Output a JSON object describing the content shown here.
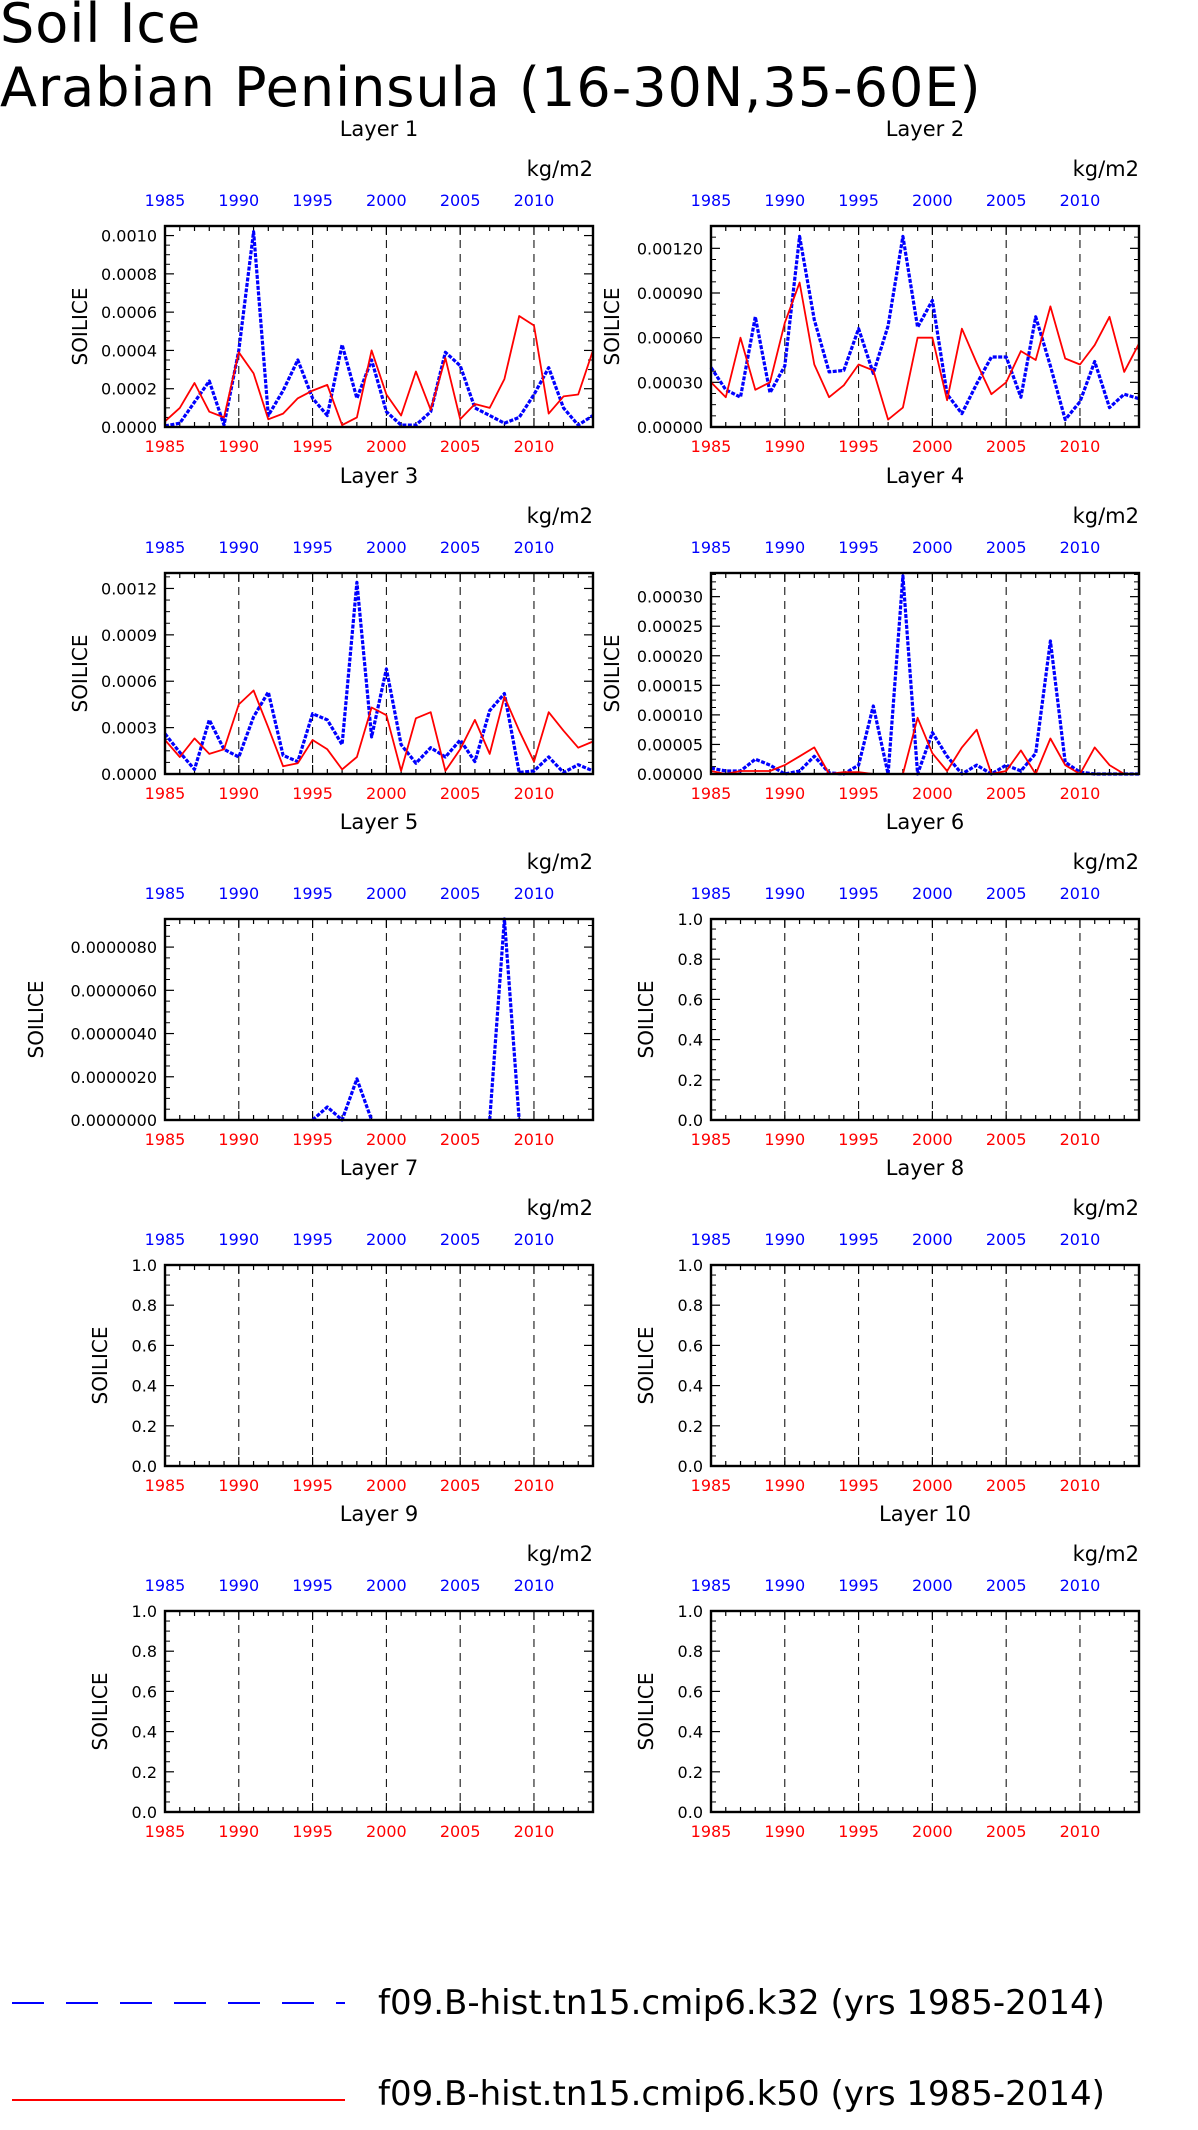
{
  "figure": {
    "title_line1": "Soil Ice",
    "title_line2": "Arabian Peninsula (16-30N,35-60E)"
  },
  "colors": {
    "series_k32": "#0000ff",
    "series_k50": "#ff0000",
    "bottom_axis": "#ff0000",
    "top_axis": "#0000ff"
  },
  "legend": [
    {
      "label": "f09.B-hist.tn15.cmip6.k32 (yrs 1985-2014)",
      "color": "#0000ff",
      "style": "dashed"
    },
    {
      "label": "f09.B-hist.tn15.cmip6.k50 (yrs 1985-2014)",
      "color": "#ff0000",
      "style": "solid"
    }
  ],
  "chart_data": [
    {
      "type": "line",
      "title": "Layer 1",
      "ylabel": "SOILICE",
      "units": "kg/m2",
      "xlim": [
        1985,
        2014
      ],
      "ylim": [
        0,
        0.00105
      ],
      "xticks": [
        1985,
        1990,
        1995,
        2000,
        2005,
        2010
      ],
      "xtick_labels": [
        "1985",
        "1990",
        "1995",
        "2000",
        "2005",
        "2010"
      ],
      "yticks": [
        0,
        0.0002,
        0.0004,
        0.0006,
        0.0008,
        0.001
      ],
      "ytick_labels": [
        "0.0000",
        "0.0002",
        "0.0004",
        "0.0006",
        "0.0008",
        "0.0010"
      ],
      "grid_x": "dashed",
      "x": [
        1985,
        1986,
        1987,
        1988,
        1989,
        1990,
        1991,
        1992,
        1993,
        1994,
        1995,
        1996,
        1997,
        1998,
        1999,
        2000,
        2001,
        2002,
        2003,
        2004,
        2005,
        2006,
        2007,
        2008,
        2009,
        2010,
        2011,
        2012,
        2013,
        2014
      ],
      "series": [
        {
          "name": "f09.B-hist.tn15.cmip6.k32",
          "values": [
            5e-06,
            2e-05,
            0.00013,
            0.00024,
            1e-05,
            0.0004,
            0.00102,
            6e-05,
            0.00019,
            0.00035,
            0.00015,
            6e-05,
            0.00043,
            0.00015,
            0.00035,
            8e-05,
            1e-05,
            1e-05,
            8e-05,
            0.00039,
            0.00032,
            0.0001,
            6e-05,
            2e-05,
            5e-05,
            0.00017,
            0.00031,
            0.0001,
            1e-05,
            6e-05
          ]
        },
        {
          "name": "f09.B-hist.tn15.cmip6.k50",
          "values": [
            3e-05,
            0.0001,
            0.00023,
            8e-05,
            5e-05,
            0.00039,
            0.00028,
            4e-05,
            7e-05,
            0.00015,
            0.00019,
            0.00022,
            1e-05,
            5e-05,
            0.0004,
            0.00017,
            6e-05,
            0.00029,
            9e-05,
            0.00036,
            4e-05,
            0.00012,
            0.0001,
            0.00025,
            0.00058,
            0.00053,
            7e-05,
            0.00016,
            0.00017,
            0.0004
          ]
        }
      ]
    },
    {
      "type": "line",
      "title": "Layer 2",
      "ylabel": "SOILICE",
      "units": "kg/m2",
      "xlim": [
        1985,
        2014
      ],
      "ylim": [
        0,
        0.00135
      ],
      "xticks": [
        1985,
        1990,
        1995,
        2000,
        2005,
        2010
      ],
      "xtick_labels": [
        "1985",
        "1990",
        "1995",
        "2000",
        "2005",
        "2010"
      ],
      "yticks": [
        0,
        0.0003,
        0.0006,
        0.0009,
        0.0012
      ],
      "ytick_labels": [
        "0.00000",
        "0.00030",
        "0.00060",
        "0.00090",
        "0.00120"
      ],
      "grid_x": "dashed",
      "x": [
        1985,
        1986,
        1987,
        1988,
        1989,
        1990,
        1991,
        1992,
        1993,
        1994,
        1995,
        1996,
        1997,
        1998,
        1999,
        2000,
        2001,
        2002,
        2003,
        2004,
        2005,
        2006,
        2007,
        2008,
        2009,
        2010,
        2011,
        2012,
        2013,
        2014
      ],
      "series": [
        {
          "name": "f09.B-hist.tn15.cmip6.k32",
          "values": [
            0.0004,
            0.00025,
            0.0002,
            0.00074,
            0.00023,
            0.00041,
            0.00128,
            0.00072,
            0.00037,
            0.00038,
            0.00066,
            0.00036,
            0.00068,
            0.00128,
            0.00067,
            0.00085,
            0.00022,
            9e-05,
            0.00029,
            0.00047,
            0.00047,
            0.0002,
            0.00074,
            0.00041,
            5e-05,
            0.00017,
            0.00044,
            0.00013,
            0.00022,
            0.00019
          ]
        },
        {
          "name": "f09.B-hist.tn15.cmip6.k50",
          "values": [
            0.0003,
            0.0002,
            0.0006,
            0.00025,
            0.0003,
            0.0007,
            0.00097,
            0.00042,
            0.0002,
            0.00028,
            0.00042,
            0.00038,
            5e-05,
            0.00013,
            0.0006,
            0.0006,
            0.00018,
            0.00066,
            0.00043,
            0.00022,
            0.0003,
            0.00051,
            0.00045,
            0.00081,
            0.00046,
            0.00042,
            0.00055,
            0.00074,
            0.00037,
            0.00056
          ]
        }
      ]
    },
    {
      "type": "line",
      "title": "Layer 3",
      "ylabel": "SOILICE",
      "units": "kg/m2",
      "xlim": [
        1985,
        2014
      ],
      "ylim": [
        0,
        0.0013
      ],
      "xticks": [
        1985,
        1990,
        1995,
        2000,
        2005,
        2010
      ],
      "xtick_labels": [
        "1985",
        "1990",
        "1995",
        "2000",
        "2005",
        "2010"
      ],
      "yticks": [
        0,
        0.0003,
        0.0006,
        0.0009,
        0.0012
      ],
      "ytick_labels": [
        "0.0000",
        "0.0003",
        "0.0006",
        "0.0009",
        "0.0012"
      ],
      "grid_x": "dashed",
      "x": [
        1985,
        1986,
        1987,
        1988,
        1989,
        1990,
        1991,
        1992,
        1993,
        1994,
        1995,
        1996,
        1997,
        1998,
        1999,
        2000,
        2001,
        2002,
        2003,
        2004,
        2005,
        2006,
        2007,
        2008,
        2009,
        2010,
        2011,
        2012,
        2013,
        2014
      ],
      "series": [
        {
          "name": "f09.B-hist.tn15.cmip6.k32",
          "values": [
            0.00026,
            0.00014,
            3e-05,
            0.00035,
            0.00016,
            0.00011,
            0.00037,
            0.00053,
            0.00012,
            8e-05,
            0.00039,
            0.00035,
            0.00019,
            0.00124,
            0.00024,
            0.00068,
            0.00019,
            7e-05,
            0.00017,
            0.00011,
            0.00022,
            8e-05,
            0.00041,
            0.00052,
            1e-05,
            2e-05,
            0.00011,
            1e-05,
            6e-05,
            2e-05
          ]
        },
        {
          "name": "f09.B-hist.tn15.cmip6.k50",
          "values": [
            0.00022,
            0.00011,
            0.00023,
            0.00013,
            0.00016,
            0.00045,
            0.00054,
            0.0003,
            5e-05,
            7e-05,
            0.00022,
            0.00016,
            3e-05,
            0.00011,
            0.00043,
            0.00038,
            2e-05,
            0.00036,
            0.0004,
            2e-05,
            0.00016,
            0.00035,
            0.00013,
            0.0005,
            0.00028,
            8e-05,
            0.0004,
            0.00028,
            0.00017,
            0.00021
          ]
        }
      ]
    },
    {
      "type": "line",
      "title": "Layer 4",
      "ylabel": "SOILICE",
      "units": "kg/m2",
      "xlim": [
        1985,
        2014
      ],
      "ylim": [
        0,
        0.00034
      ],
      "xticks": [
        1985,
        1990,
        1995,
        2000,
        2005,
        2010
      ],
      "xtick_labels": [
        "1985",
        "1990",
        "1995",
        "2000",
        "2005",
        "2010"
      ],
      "yticks": [
        0,
        5e-05,
        0.0001,
        0.00015,
        0.0002,
        0.00025,
        0.0003
      ],
      "ytick_labels": [
        "0.00000",
        "0.00005",
        "0.00010",
        "0.00015",
        "0.00020",
        "0.00025",
        "0.00030"
      ],
      "grid_x": "dashed",
      "x": [
        1985,
        1986,
        1987,
        1988,
        1989,
        1990,
        1991,
        1992,
        1993,
        1994,
        1995,
        1996,
        1997,
        1998,
        1999,
        2000,
        2001,
        2002,
        2003,
        2004,
        2005,
        2006,
        2007,
        2008,
        2009,
        2010,
        2011,
        2012,
        2013,
        2014
      ],
      "series": [
        {
          "name": "f09.B-hist.tn15.cmip6.k32",
          "values": [
            1e-05,
            5e-06,
            5e-06,
            2.5e-05,
            1.5e-05,
            0.0,
            5e-06,
            3e-05,
            2e-06,
            0.0,
            1.5e-05,
            0.000115,
            0.0,
            0.000335,
            0.0,
            7e-05,
            3e-05,
            0.0,
            1.5e-05,
            0.0,
            1.5e-05,
            5e-06,
            3.5e-05,
            0.000225,
            2e-05,
            3e-06,
            0.0,
            0.0,
            0.0,
            0.0
          ]
        },
        {
          "name": "f09.B-hist.tn15.cmip6.k50",
          "values": [
            5e-06,
            0.0,
            5e-06,
            5e-06,
            5e-06,
            1.5e-05,
            3e-05,
            4.5e-05,
            0.0,
            3e-06,
            3e-06,
            0.0,
            0.0,
            0.0,
            9.5e-05,
            3.5e-05,
            5e-06,
            4.5e-05,
            7.5e-05,
            0.0,
            5e-06,
            4e-05,
            0.0,
            6e-05,
            1.5e-05,
            0.0,
            4.5e-05,
            1.5e-05,
            0.0,
            0.0
          ]
        }
      ]
    },
    {
      "type": "line",
      "title": "Layer 5",
      "ylabel": "SOILICE",
      "units": "kg/m2",
      "xlim": [
        1985,
        2014
      ],
      "ylim": [
        0,
        9.3e-06
      ],
      "xticks": [
        1985,
        1990,
        1995,
        2000,
        2005,
        2010
      ],
      "xtick_labels": [
        "1985",
        "1990",
        "1995",
        "2000",
        "2005",
        "2010"
      ],
      "yticks": [
        0,
        2e-06,
        4e-06,
        6e-06,
        8e-06
      ],
      "ytick_labels": [
        "0.0000000",
        "0.0000020",
        "0.0000040",
        "0.0000060",
        "0.0000080"
      ],
      "grid_x": "dashed",
      "x": [
        1995,
        1996,
        1997,
        1998,
        1999,
        2007,
        2008,
        2009
      ],
      "series": [
        {
          "name": "f09.B-hist.tn15.cmip6.k32",
          "values": [
            0.0,
            6e-07,
            0.0,
            1.9e-06,
            0.0,
            0.0,
            9.3e-06,
            0.0
          ],
          "segments": [
            [
              0,
              4
            ],
            [
              5,
              7
            ]
          ]
        }
      ]
    },
    {
      "type": "line",
      "title": "Layer 6",
      "ylabel": "SOILICE",
      "units": "kg/m2",
      "xlim": [
        1985,
        2014
      ],
      "ylim": [
        0,
        1
      ],
      "xticks": [
        1985,
        1990,
        1995,
        2000,
        2005,
        2010
      ],
      "xtick_labels": [
        "1985",
        "1990",
        "1995",
        "2000",
        "2005",
        "2010"
      ],
      "yticks": [
        0,
        0.2,
        0.4,
        0.6,
        0.8,
        1.0
      ],
      "ytick_labels": [
        "0.0",
        "0.2",
        "0.4",
        "0.6",
        "0.8",
        "1.0"
      ],
      "grid_x": "dashed",
      "series": []
    },
    {
      "type": "line",
      "title": "Layer 7",
      "ylabel": "SOILICE",
      "units": "kg/m2",
      "xlim": [
        1985,
        2014
      ],
      "ylim": [
        0,
        1
      ],
      "xticks": [
        1985,
        1990,
        1995,
        2000,
        2005,
        2010
      ],
      "xtick_labels": [
        "1985",
        "1990",
        "1995",
        "2000",
        "2005",
        "2010"
      ],
      "yticks": [
        0,
        0.2,
        0.4,
        0.6,
        0.8,
        1.0
      ],
      "ytick_labels": [
        "0.0",
        "0.2",
        "0.4",
        "0.6",
        "0.8",
        "1.0"
      ],
      "grid_x": "dashed",
      "series": []
    },
    {
      "type": "line",
      "title": "Layer 8",
      "ylabel": "SOILICE",
      "units": "kg/m2",
      "xlim": [
        1985,
        2014
      ],
      "ylim": [
        0,
        1
      ],
      "xticks": [
        1985,
        1990,
        1995,
        2000,
        2005,
        2010
      ],
      "xtick_labels": [
        "1985",
        "1990",
        "1995",
        "2000",
        "2005",
        "2010"
      ],
      "yticks": [
        0,
        0.2,
        0.4,
        0.6,
        0.8,
        1.0
      ],
      "ytick_labels": [
        "0.0",
        "0.2",
        "0.4",
        "0.6",
        "0.8",
        "1.0"
      ],
      "grid_x": "dashed",
      "series": []
    },
    {
      "type": "line",
      "title": "Layer 9",
      "ylabel": "SOILICE",
      "units": "kg/m2",
      "xlim": [
        1985,
        2014
      ],
      "ylim": [
        0,
        1
      ],
      "xticks": [
        1985,
        1990,
        1995,
        2000,
        2005,
        2010
      ],
      "xtick_labels": [
        "1985",
        "1990",
        "1995",
        "2000",
        "2005",
        "2010"
      ],
      "yticks": [
        0,
        0.2,
        0.4,
        0.6,
        0.8,
        1.0
      ],
      "ytick_labels": [
        "0.0",
        "0.2",
        "0.4",
        "0.6",
        "0.8",
        "1.0"
      ],
      "grid_x": "dashed",
      "series": []
    },
    {
      "type": "line",
      "title": "Layer 10",
      "ylabel": "SOILICE",
      "units": "kg/m2",
      "xlim": [
        1985,
        2014
      ],
      "ylim": [
        0,
        1
      ],
      "xticks": [
        1985,
        1990,
        1995,
        2000,
        2005,
        2010
      ],
      "xtick_labels": [
        "1985",
        "1990",
        "1995",
        "2000",
        "2005",
        "2010"
      ],
      "yticks": [
        0,
        0.2,
        0.4,
        0.6,
        0.8,
        1.0
      ],
      "ytick_labels": [
        "0.0",
        "0.2",
        "0.4",
        "0.6",
        "0.8",
        "1.0"
      ],
      "grid_x": "dashed",
      "series": []
    }
  ]
}
